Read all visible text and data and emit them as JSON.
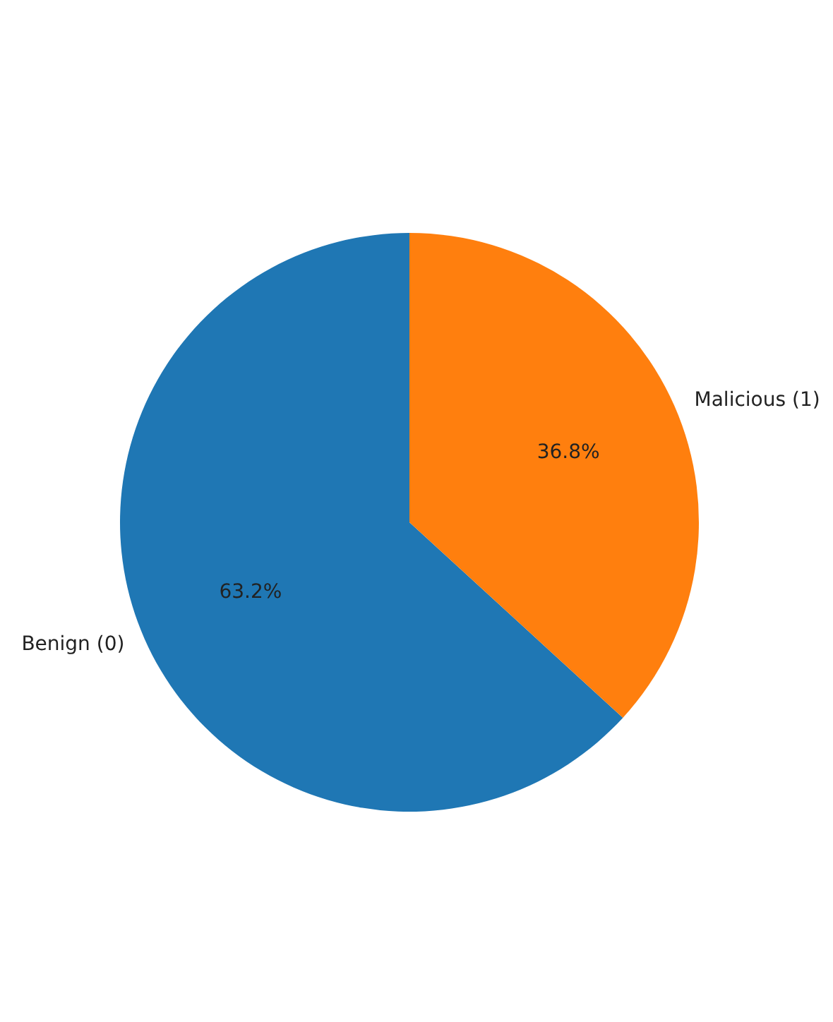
{
  "chart_data": {
    "type": "pie",
    "categories": [
      "Benign (0)",
      "Malicious (1)"
    ],
    "values": [
      63.2,
      36.8
    ],
    "value_labels": [
      "63.2%",
      "36.8%"
    ],
    "colors": [
      "#1f77b4",
      "#ff7f0e"
    ]
  }
}
